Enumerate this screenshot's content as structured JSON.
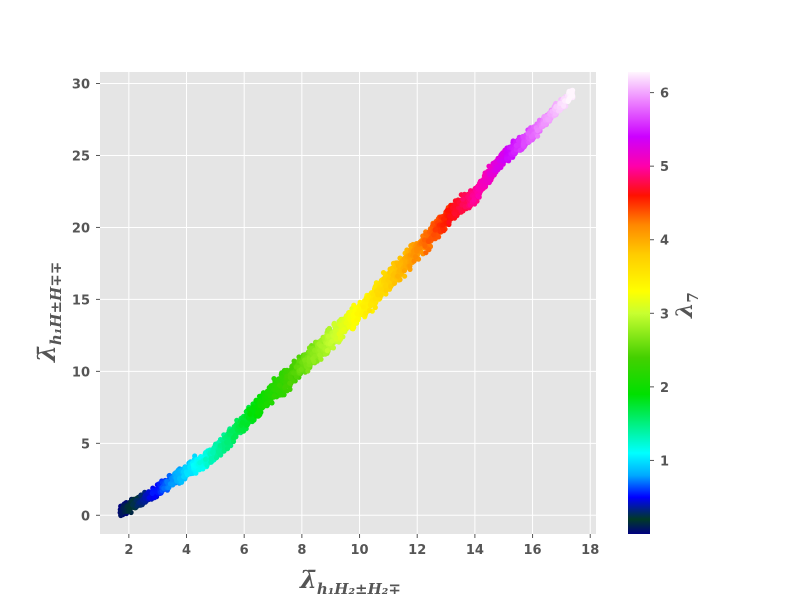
{
  "chart_data": {
    "type": "scatter",
    "title": "",
    "xlabel": {
      "main": "λ̄",
      "sub": "h₁H₂±H₂∓"
    },
    "ylabel": {
      "main": "λ̄",
      "sub": "h₁H±H∓∓"
    },
    "xlim": [
      1.0,
      18.2
    ],
    "ylim": [
      -1.3,
      30.8
    ],
    "x_ticks": [
      2,
      4,
      6,
      8,
      10,
      12,
      14,
      16,
      18
    ],
    "y_ticks": [
      0,
      5,
      10,
      15,
      20,
      25,
      30
    ],
    "grid": true,
    "background": "#e5e5e5",
    "colorbar": {
      "label": "λ",
      "label_sub": "7",
      "range": [
        0.0,
        6.28
      ],
      "ticks": [
        1,
        2,
        3,
        4,
        5,
        6
      ],
      "colormap": "gist_ncar",
      "colormap_stops": [
        {
          "v": 0.0,
          "color": "#000080"
        },
        {
          "v": 0.2,
          "color": "#003a26"
        },
        {
          "v": 0.5,
          "color": "#0000ff"
        },
        {
          "v": 0.8,
          "color": "#00aaff"
        },
        {
          "v": 1.1,
          "color": "#00ffff"
        },
        {
          "v": 1.5,
          "color": "#00f080"
        },
        {
          "v": 1.9,
          "color": "#00e000"
        },
        {
          "v": 2.4,
          "color": "#44d000"
        },
        {
          "v": 3.0,
          "color": "#c8ff30"
        },
        {
          "v": 3.3,
          "color": "#ffff00"
        },
        {
          "v": 3.8,
          "color": "#ffcc00"
        },
        {
          "v": 4.2,
          "color": "#ff8800"
        },
        {
          "v": 4.6,
          "color": "#ff1100"
        },
        {
          "v": 5.0,
          "color": "#ff00aa"
        },
        {
          "v": 5.4,
          "color": "#cc00ff"
        },
        {
          "v": 5.9,
          "color": "#ee88ff"
        },
        {
          "v": 6.28,
          "color": "#fff6fe"
        }
      ]
    },
    "series": [
      {
        "band_center": [
          [
            1.7,
            0.3
          ],
          [
            2.5,
            1.1
          ],
          [
            3.0,
            1.7
          ],
          [
            3.5,
            2.4
          ],
          [
            4.0,
            3.1
          ],
          [
            4.5,
            3.6
          ],
          [
            5.0,
            4.3
          ],
          [
            6.0,
            6.5
          ],
          [
            7.0,
            8.6
          ],
          [
            8.0,
            10.4
          ],
          [
            9.0,
            12.3
          ],
          [
            10.0,
            14.1
          ],
          [
            11.0,
            16.3
          ],
          [
            12.0,
            18.4
          ],
          [
            13.0,
            20.6
          ],
          [
            14.0,
            22.3
          ],
          [
            15.0,
            24.9
          ],
          [
            16.0,
            26.5
          ],
          [
            17.4,
            29.4
          ]
        ],
        "band_halfwidth_y": 0.9,
        "color_value": {
          "x_at_0": 1.7,
          "x_at_max": 17.4,
          "min": 0.0,
          "max": 6.28
        },
        "point_count": 3200
      }
    ]
  }
}
